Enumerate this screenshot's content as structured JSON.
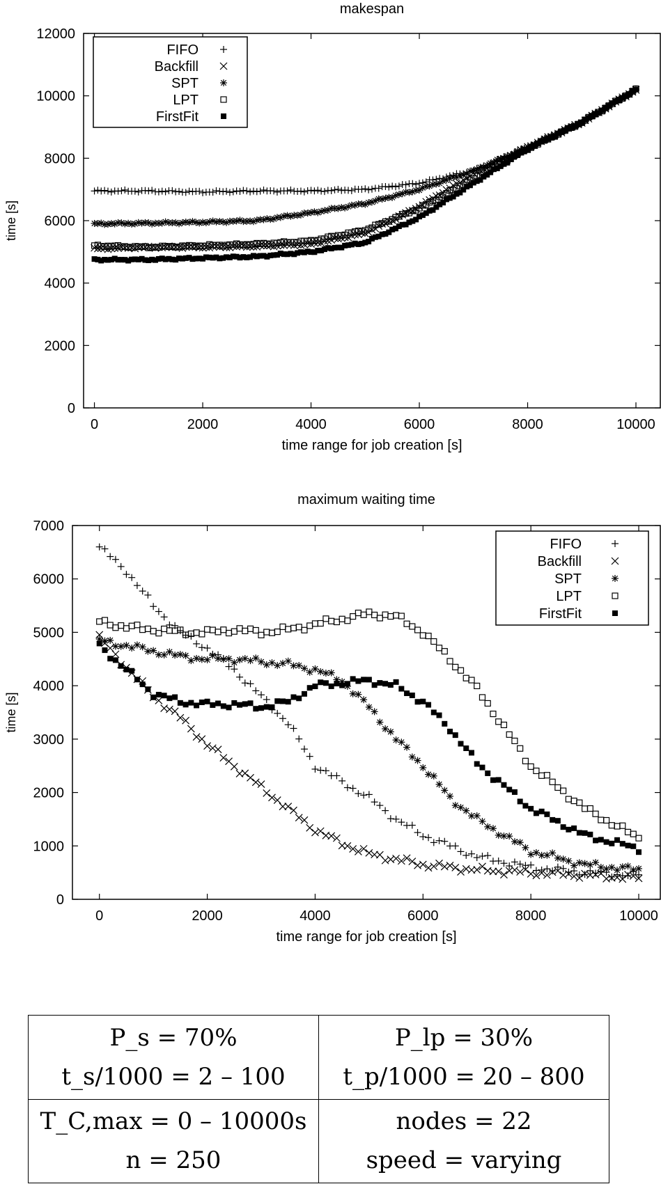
{
  "chart_data": [
    {
      "type": "scatter",
      "title": "makespan",
      "xlabel": "time range for job creation [s]",
      "ylabel": "time [s]",
      "xlim": [
        -200,
        10450
      ],
      "ylim": [
        0,
        12000
      ],
      "xticks": [
        "0",
        "2000",
        "4000",
        "6000",
        "8000",
        "10000"
      ],
      "yticks": [
        "0",
        "2000",
        "4000",
        "6000",
        "8000",
        "10000",
        "12000"
      ],
      "legend": "top-left",
      "grid": false,
      "series": [
        {
          "name": "FIFO",
          "marker": "plus",
          "x": [
            0,
            1000,
            2000,
            3000,
            4000,
            5000,
            6000,
            7000,
            8000,
            9000,
            10000
          ],
          "y": [
            6950,
            6950,
            6920,
            6950,
            6950,
            7000,
            7200,
            7600,
            8350,
            9150,
            10200
          ]
        },
        {
          "name": "Backfill",
          "marker": "cross",
          "x": [
            0,
            1000,
            2000,
            3000,
            4000,
            5000,
            6000,
            7000,
            8000,
            9000,
            10000
          ],
          "y": [
            5100,
            5150,
            5150,
            5180,
            5250,
            5600,
            6450,
            7500,
            8350,
            9150,
            10200
          ]
        },
        {
          "name": "SPT",
          "marker": "star",
          "x": [
            0,
            1000,
            2000,
            3000,
            4000,
            5000,
            6000,
            7000,
            8000,
            9000,
            10000
          ],
          "y": [
            5900,
            5920,
            5950,
            6000,
            6250,
            6550,
            7000,
            7600,
            8350,
            9150,
            10200
          ]
        },
        {
          "name": "LPT",
          "marker": "box",
          "x": [
            0,
            1000,
            2000,
            3000,
            4000,
            5000,
            6000,
            7000,
            8000,
            9000,
            10000
          ],
          "y": [
            5200,
            5150,
            5200,
            5250,
            5350,
            5700,
            6400,
            7350,
            8300,
            9150,
            10200
          ]
        },
        {
          "name": "FirstFit",
          "marker": "filledbox",
          "x": [
            0,
            1000,
            2000,
            3000,
            4000,
            5000,
            6000,
            7000,
            8000,
            9000,
            10000
          ],
          "y": [
            4750,
            4750,
            4800,
            4850,
            5000,
            5300,
            6100,
            7200,
            8300,
            9150,
            10200
          ]
        }
      ]
    },
    {
      "type": "scatter",
      "title": "maximum waiting time",
      "xlabel": "time range for job creation [s]",
      "ylabel": "time [s]",
      "xlim": [
        -500,
        10400
      ],
      "ylim": [
        0,
        7000
      ],
      "xticks": [
        "0",
        "2000",
        "4000",
        "6000",
        "8000",
        "10000"
      ],
      "yticks": [
        "0",
        "1000",
        "2000",
        "3000",
        "4000",
        "5000",
        "6000",
        "7000"
      ],
      "legend": "top-right",
      "grid": false,
      "series": [
        {
          "name": "FIFO",
          "marker": "plus",
          "x": [
            0,
            500,
            1000,
            1500,
            2000,
            2500,
            3000,
            3500,
            4000,
            4500,
            5000,
            5500,
            6000,
            6500,
            7000,
            8000,
            9000,
            10000
          ],
          "y": [
            6600,
            6150,
            5500,
            5000,
            4700,
            4300,
            3800,
            3300,
            2500,
            2200,
            1900,
            1500,
            1200,
            1000,
            800,
            600,
            500,
            450
          ]
        },
        {
          "name": "Backfill",
          "marker": "cross",
          "x": [
            0,
            500,
            1000,
            1500,
            2000,
            2500,
            3000,
            3500,
            4000,
            4500,
            5000,
            5500,
            6000,
            6500,
            7000,
            8000,
            9000,
            10000
          ],
          "y": [
            4900,
            4350,
            3800,
            3400,
            2900,
            2500,
            2100,
            1700,
            1300,
            1050,
            850,
            750,
            650,
            600,
            550,
            500,
            450,
            400
          ]
        },
        {
          "name": "SPT",
          "marker": "star",
          "x": [
            0,
            500,
            1000,
            1500,
            2000,
            2500,
            3000,
            3500,
            4000,
            4500,
            5000,
            5500,
            6000,
            6500,
            7000,
            8000,
            9000,
            10000
          ],
          "y": [
            4850,
            4750,
            4650,
            4550,
            4500,
            4500,
            4450,
            4400,
            4300,
            4100,
            3600,
            3000,
            2500,
            1900,
            1500,
            900,
            650,
            550
          ]
        },
        {
          "name": "LPT",
          "marker": "box",
          "x": [
            0,
            500,
            1000,
            1500,
            2000,
            2500,
            3000,
            3500,
            4000,
            4500,
            5000,
            5500,
            6000,
            6500,
            7000,
            8000,
            9000,
            10000
          ],
          "y": [
            5200,
            5100,
            5050,
            5000,
            5000,
            5050,
            5000,
            5050,
            5150,
            5250,
            5350,
            5300,
            5000,
            4500,
            3950,
            2500,
            1700,
            1150
          ]
        },
        {
          "name": "FirstFit",
          "marker": "filledbox",
          "x": [
            0,
            500,
            1000,
            1500,
            2000,
            2500,
            3000,
            3500,
            4000,
            4500,
            5000,
            5500,
            6000,
            6500,
            7000,
            8000,
            9000,
            10000
          ],
          "y": [
            4750,
            4300,
            3850,
            3700,
            3650,
            3650,
            3600,
            3700,
            4000,
            4050,
            4100,
            4000,
            3700,
            3200,
            2550,
            1700,
            1200,
            950
          ]
        }
      ]
    }
  ],
  "params": [
    [
      {
        "line1": "P_s = 70%",
        "line2": "t_s/1000 = 2 – 100"
      },
      {
        "line1": "P_lp = 30%",
        "line2": "t_p/1000 = 20 – 800"
      }
    ],
    [
      {
        "line1": "T_C,max = 0 – 10000s",
        "line2": "n = 250"
      },
      {
        "line1": "nodes = 22",
        "line2": "speed = varying"
      }
    ]
  ]
}
